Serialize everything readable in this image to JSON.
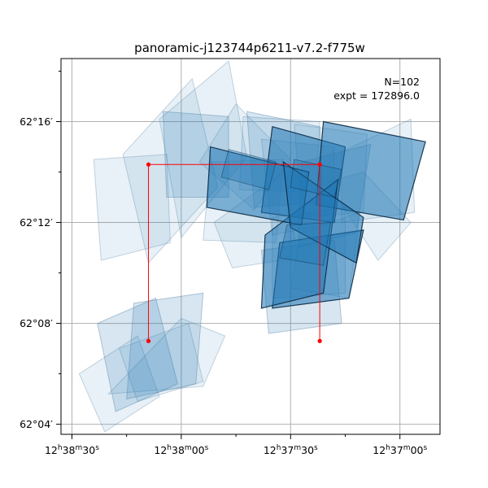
{
  "chart_data": {
    "type": "footprint",
    "title": "panoramic-j123744p6211-v7.2-f775w",
    "xlabel": "",
    "ylabel": "",
    "x_axis": "right ascension (arcsec offset, increasing left)",
    "x_ticks": [
      {
        "value": 0,
        "label_parts": [
          "12",
          "h",
          "38",
          "m",
          "30",
          "s"
        ]
      },
      {
        "value": 30,
        "label_parts": [
          "12",
          "h",
          "38",
          "m",
          "00",
          "s"
        ]
      },
      {
        "value": 60,
        "label_parts": [
          "12",
          "h",
          "37",
          "m",
          "30",
          "s"
        ]
      },
      {
        "value": 90,
        "label_parts": [
          "12",
          "h",
          "37",
          "m",
          "00",
          "s"
        ]
      }
    ],
    "y_ticks": [
      {
        "value": 4,
        "label": "62°04′"
      },
      {
        "value": 8,
        "label": "62°08′"
      },
      {
        "value": 12,
        "label": "62°12′"
      },
      {
        "value": 16,
        "label": "62°16′"
      }
    ],
    "xlim": [
      -3,
      101
    ],
    "ylim": [
      3.6,
      18.5
    ],
    "grid": true,
    "annotation_lines": [
      "N=102",
      "expt = 172896.0"
    ],
    "colors": {
      "footprint_fill": "#1f77b4",
      "footprint_edge": "#0b2a44",
      "light_edge": "#5b88a8",
      "path": "#ff0000"
    },
    "red_path": [
      [
        21,
        7.3
      ],
      [
        21,
        14.3
      ],
      [
        68,
        14.3
      ],
      [
        68,
        7.3
      ]
    ],
    "footprints_light": [
      [
        [
          14,
          14.7
        ],
        [
          33,
          17.7
        ],
        [
          40,
          13.4
        ],
        [
          21,
          10.4
        ]
      ],
      [
        [
          24,
          16.1
        ],
        [
          43,
          18.4
        ],
        [
          48,
          14.6
        ],
        [
          30,
          11.4
        ]
      ],
      [
        [
          8,
          10.5
        ],
        [
          27,
          11.2
        ],
        [
          26,
          14.7
        ],
        [
          6,
          14.5
        ]
      ],
      [
        [
          52,
          15.3
        ],
        [
          72,
          15.0
        ],
        [
          72,
          12.0
        ],
        [
          55,
          11.5
        ]
      ],
      [
        [
          38,
          14.4
        ],
        [
          58,
          14.5
        ],
        [
          56,
          11.2
        ],
        [
          36,
          11.3
        ]
      ],
      [
        [
          61,
          15.9
        ],
        [
          81,
          15.5
        ],
        [
          80,
          12.4
        ],
        [
          63,
          12.2
        ]
      ],
      [
        [
          74,
          14.8
        ],
        [
          93,
          16.1
        ],
        [
          94,
          12.4
        ],
        [
          74,
          12.0
        ]
      ],
      [
        [
          70,
          13.6
        ],
        [
          80,
          14.0
        ],
        [
          93,
          12.0
        ],
        [
          84,
          10.5
        ]
      ],
      [
        [
          55,
          12.2
        ],
        [
          75,
          12.6
        ],
        [
          75,
          9.2
        ],
        [
          55,
          9.0
        ]
      ],
      [
        [
          63,
          11.6
        ],
        [
          79,
          12.4
        ],
        [
          76,
          9.0
        ],
        [
          60,
          9.4
        ]
      ],
      [
        [
          2,
          6.0
        ],
        [
          18,
          7.5
        ],
        [
          24,
          5.1
        ],
        [
          9,
          3.7
        ]
      ],
      [
        [
          10,
          5.2
        ],
        [
          30,
          8.2
        ],
        [
          42,
          7.5
        ],
        [
          36,
          5.5
        ]
      ],
      [
        [
          13,
          7.0
        ],
        [
          32,
          8.0
        ],
        [
          36,
          5.7
        ],
        [
          18,
          4.9
        ]
      ],
      [
        [
          47,
          16.2
        ],
        [
          68,
          16.0
        ],
        [
          67,
          13.2
        ],
        [
          46,
          13.3
        ]
      ],
      [
        [
          39,
          12.0
        ],
        [
          58,
          14.0
        ],
        [
          62,
          10.6
        ],
        [
          44,
          10.2
        ]
      ],
      [
        [
          45,
          16.7
        ],
        [
          60,
          14.5
        ],
        [
          50,
          12.5
        ],
        [
          35,
          14.4
        ]
      ]
    ],
    "footprints_mid": [
      [
        [
          25,
          16.4
        ],
        [
          43,
          16.2
        ],
        [
          43,
          13.0
        ],
        [
          26,
          13.0
        ]
      ],
      [
        [
          48,
          16.4
        ],
        [
          68,
          15.8
        ],
        [
          69,
          12.8
        ],
        [
          50,
          12.6
        ]
      ],
      [
        [
          63,
          14.4
        ],
        [
          82,
          15.1
        ],
        [
          78,
          11.6
        ],
        [
          62,
          11.0
        ]
      ],
      [
        [
          7,
          8.0
        ],
        [
          23,
          9.0
        ],
        [
          29,
          5.6
        ],
        [
          12,
          4.5
        ]
      ],
      [
        [
          17,
          8.8
        ],
        [
          36,
          9.2
        ],
        [
          34,
          5.6
        ],
        [
          15,
          5.0
        ]
      ],
      [
        [
          52,
          10.9
        ],
        [
          72,
          11.3
        ],
        [
          74,
          8.0
        ],
        [
          54,
          7.6
        ]
      ]
    ],
    "footprints_dark": [
      [
        [
          55,
          15.8
        ],
        [
          75,
          15.0
        ],
        [
          72,
          12.0
        ],
        [
          52,
          12.4
        ]
      ],
      [
        [
          69,
          16.0
        ],
        [
          97,
          15.2
        ],
        [
          91,
          12.1
        ],
        [
          67,
          12.7
        ]
      ],
      [
        [
          57,
          11.2
        ],
        [
          80,
          11.7
        ],
        [
          76,
          9.0
        ],
        [
          55,
          8.6
        ]
      ],
      [
        [
          53,
          11.5
        ],
        [
          73,
          13.7
        ],
        [
          69,
          9.2
        ],
        [
          52,
          8.6
        ]
      ],
      [
        [
          38,
          15.0
        ],
        [
          65,
          14.0
        ],
        [
          63,
          11.9
        ],
        [
          37,
          12.6
        ]
      ],
      [
        [
          58,
          14.4
        ],
        [
          80,
          12.2
        ],
        [
          78,
          10.4
        ],
        [
          60,
          11.8
        ]
      ]
    ],
    "footprints_dark_strong": [
      [
        [
          43,
          14.9
        ],
        [
          56,
          14.4
        ],
        [
          54,
          13.3
        ],
        [
          41,
          13.8
        ]
      ],
      [
        [
          61,
          14.5
        ],
        [
          74,
          14.1
        ],
        [
          72,
          13.0
        ],
        [
          60,
          13.4
        ]
      ],
      [
        [
          59,
          11.9
        ],
        [
          71,
          12.0
        ],
        [
          69,
          10.3
        ],
        [
          57,
          10.6
        ]
      ]
    ]
  }
}
